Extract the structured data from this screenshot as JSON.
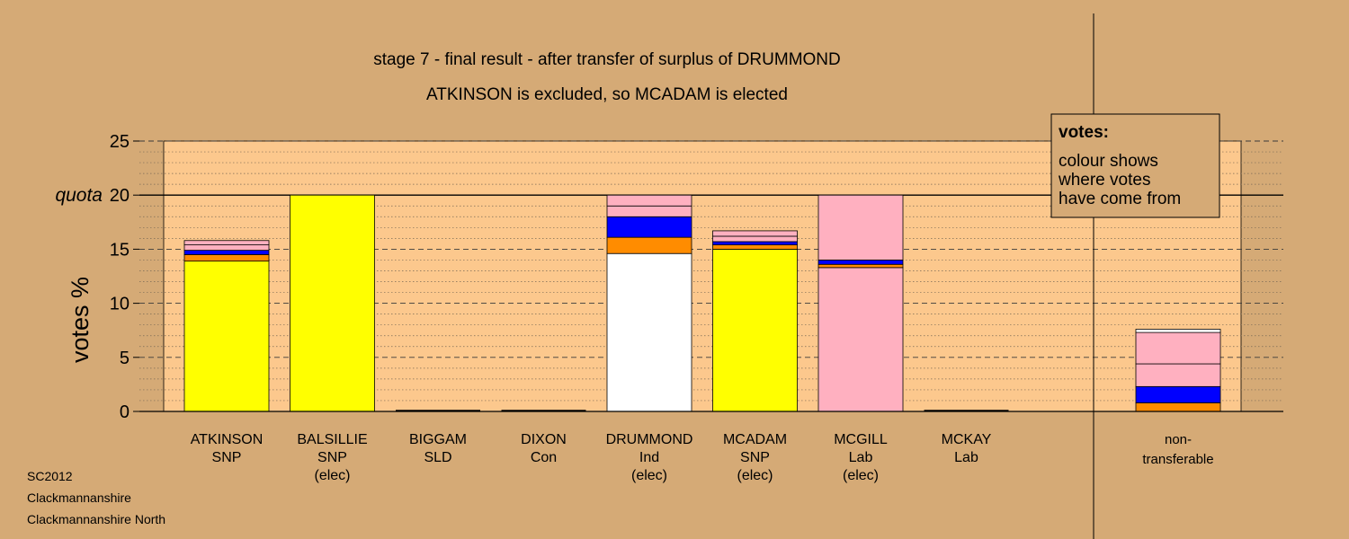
{
  "title_line1": "stage 7 - final result - after transfer of surplus of DRUMMOND",
  "title_line2": "ATKINSON is excluded, so MCADAM is elected",
  "legend": {
    "heading": "votes:",
    "lines": [
      "colour shows",
      "where votes",
      "have come from"
    ]
  },
  "footer": [
    "SC2012",
    "Clackmannanshire",
    "Clackmannanshire North"
  ],
  "colors": {
    "background": "#d5aa76",
    "plot_background": "#fcc88d",
    "snp": "#ffff00",
    "ind": "#ffffff",
    "lab": "#ffb0c0",
    "con": "#0000ff",
    "sld": "#ff8c00"
  },
  "chart_data": {
    "type": "bar",
    "stacked": true,
    "ylabel": "votes %",
    "ylim": [
      0,
      25
    ],
    "yticks": [
      0,
      5,
      10,
      15,
      20,
      25
    ],
    "quota": 20,
    "quota_label": "quota",
    "grid": true,
    "legend_placement": "top-right",
    "candidates": [
      {
        "name": "ATKINSON",
        "party": "SNP",
        "status": "",
        "segments": [
          {
            "source": "snp",
            "value": 13.9
          },
          {
            "source": "sld",
            "value": 0.6
          },
          {
            "source": "con",
            "value": 0.4
          },
          {
            "source": "lab",
            "value": 0.5
          },
          {
            "source": "lab",
            "value": 0.4
          }
        ]
      },
      {
        "name": "BALSILLIE",
        "party": "SNP",
        "status": "(elec)",
        "segments": [
          {
            "source": "snp",
            "value": 20.0
          }
        ]
      },
      {
        "name": "BIGGAM",
        "party": "SLD",
        "status": "",
        "segments": []
      },
      {
        "name": "DIXON",
        "party": "Con",
        "status": "",
        "segments": []
      },
      {
        "name": "DRUMMOND",
        "party": "Ind",
        "status": "(elec)",
        "segments": [
          {
            "source": "ind",
            "value": 14.6
          },
          {
            "source": "sld",
            "value": 1.5
          },
          {
            "source": "con",
            "value": 1.9
          },
          {
            "source": "lab",
            "value": 1.0
          },
          {
            "source": "lab",
            "value": 1.0
          }
        ]
      },
      {
        "name": "MCADAM",
        "party": "SNP",
        "status": "(elec)",
        "segments": [
          {
            "source": "snp",
            "value": 15.0
          },
          {
            "source": "sld",
            "value": 0.4
          },
          {
            "source": "con",
            "value": 0.3
          },
          {
            "source": "lab",
            "value": 0.5
          },
          {
            "source": "lab",
            "value": 0.5
          }
        ]
      },
      {
        "name": "MCGILL",
        "party": "Lab",
        "status": "(elec)",
        "segments": [
          {
            "source": "lab",
            "value": 13.3
          },
          {
            "source": "sld",
            "value": 0.3
          },
          {
            "source": "con",
            "value": 0.4
          },
          {
            "source": "lab",
            "value": 6.0
          }
        ]
      },
      {
        "name": "MCKAY",
        "party": "Lab",
        "status": "",
        "segments": []
      }
    ],
    "nontransferable": {
      "label_line1": "non-",
      "label_line2": "transferable",
      "segments": [
        {
          "source": "sld",
          "value": 0.8
        },
        {
          "source": "con",
          "value": 1.5
        },
        {
          "source": "lab",
          "value": 2.1
        },
        {
          "source": "lab",
          "value": 2.9
        },
        {
          "source": "ind",
          "value": 0.3
        }
      ]
    }
  }
}
